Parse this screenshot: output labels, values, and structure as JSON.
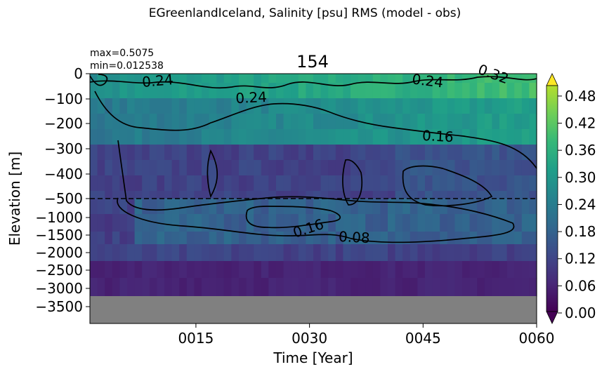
{
  "chart_data": {
    "type": "heatmap",
    "suptitle": "EGreenlandIceland, Salinity [psu] RMS (model - obs)",
    "title": "154",
    "stats": {
      "max_label": "max=0.5075",
      "min_label": "min=0.012538"
    },
    "xlabel": "Time [Year]",
    "ylabel": "Elevation [m]",
    "x_range": [
      1,
      60
    ],
    "x_ticks": [
      {
        "value": 15,
        "label": "0015"
      },
      {
        "value": 30,
        "label": "0030"
      },
      {
        "value": 45,
        "label": "0045"
      },
      {
        "value": 60,
        "label": "0060"
      }
    ],
    "y_ticks": [
      "0",
      "−100",
      "−200",
      "−300",
      "−400",
      "−500",
      "−1000",
      "−1500",
      "−2000",
      "−2500",
      "−3000",
      "−3500"
    ],
    "colorbar": {
      "vmin": 0,
      "vmax": 0.5,
      "colormap": "viridis",
      "ticks": [
        "0.00",
        "0.06",
        "0.12",
        "0.18",
        "0.24",
        "0.30",
        "0.36",
        "0.42",
        "0.48"
      ],
      "extend": "both"
    },
    "contour_levels": [
      0.08,
      0.16,
      0.24,
      0.32
    ],
    "contour_labels": [
      "0.24",
      "0.24",
      "0.24",
      "0.32",
      "0.16",
      "0.16",
      "0.08"
    ],
    "dashed_line_depth": "−500",
    "land_color": "#808080",
    "colors": {
      "upper_mean": 0.2,
      "mid_mean": 0.11,
      "deep_mean": 0.06,
      "bottom_mean": 0.04
    }
  }
}
